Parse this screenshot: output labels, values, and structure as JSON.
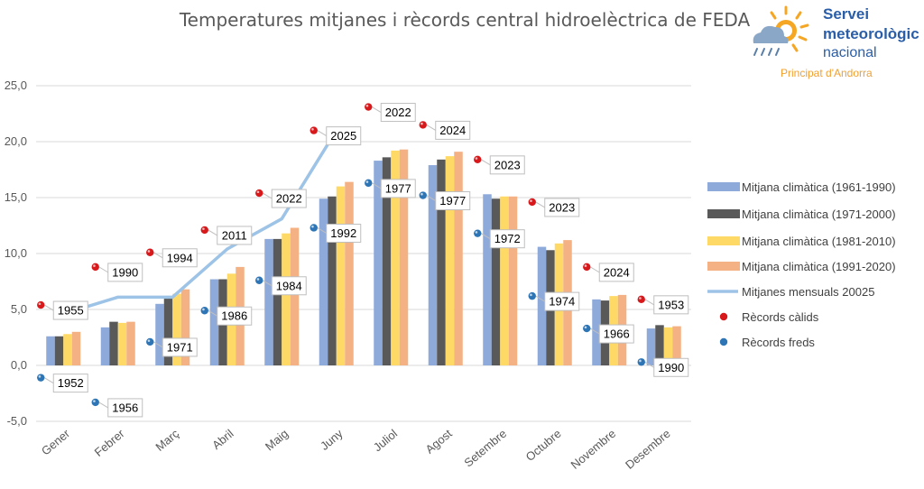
{
  "colors": {
    "s1": "#8eaadb",
    "s2": "#595959",
    "s3": "#ffd966",
    "s4": "#f4b183",
    "line": "#9dc3e6",
    "warm": "#d7191c",
    "cold": "#2e75b6",
    "grid": "#d9d9d9"
  },
  "logo": {
    "line1": "Servei",
    "line2": "meteorològic",
    "line3": "nacional",
    "line4": "Principat d'Andorra",
    "icon": "sun-cloud-rain-icon"
  },
  "chart_data": {
    "type": "bar",
    "title": "Temperatures mitjanes i rècords central hidroelèctrica de FEDA",
    "categories": [
      "Gener",
      "Febrer",
      "Març",
      "Abril",
      "Maig",
      "Juny",
      "Juliol",
      "Agost",
      "Setembre",
      "Octubre",
      "Novembre",
      "Desembre"
    ],
    "ylim": [
      -5,
      25
    ],
    "yticks": [
      "-5,0",
      "0,0",
      "5,0",
      "10,0",
      "15,0",
      "20,0",
      "25,0"
    ],
    "grid": true,
    "legend_position": "right",
    "series": [
      {
        "name": "Mitjana climàtica (1961-1990)",
        "values": [
          2.6,
          3.4,
          5.5,
          7.7,
          11.3,
          14.9,
          18.3,
          17.9,
          15.3,
          10.6,
          5.9,
          3.3
        ]
      },
      {
        "name": "Mitjana climàtica (1971-2000)",
        "values": [
          2.6,
          3.9,
          6.0,
          7.7,
          11.3,
          15.1,
          18.6,
          18.4,
          14.9,
          10.3,
          5.8,
          3.6
        ]
      },
      {
        "name": "Mitjana climàtica (1981-2010)",
        "values": [
          2.8,
          3.8,
          6.4,
          8.2,
          11.8,
          16.0,
          19.2,
          18.7,
          15.1,
          10.9,
          6.2,
          3.4
        ]
      },
      {
        "name": "Mitjana climàtica (1991-2020)",
        "values": [
          3.0,
          3.9,
          6.8,
          8.8,
          12.3,
          16.4,
          19.3,
          19.1,
          15.1,
          11.2,
          6.3,
          3.5
        ]
      }
    ],
    "line": {
      "name": "Mitjanes mensuals 20025",
      "values": [
        4.6,
        6.1,
        6.1,
        10.4,
        13.1,
        21.0
      ]
    },
    "warm_records": {
      "name": "Rècords càlids",
      "values": [
        5.4,
        8.8,
        10.1,
        12.1,
        15.4,
        21.0,
        23.1,
        21.5,
        18.4,
        14.6,
        8.8,
        5.9
      ],
      "years": [
        "1955",
        "1990",
        "1994",
        "2011",
        "2022",
        "2025",
        "2022",
        "2024",
        "2023",
        "2023",
        "2024",
        "1953"
      ]
    },
    "cold_records": {
      "name": "Rècords freds",
      "values": [
        -1.1,
        -3.3,
        2.1,
        4.9,
        7.6,
        12.3,
        16.3,
        15.2,
        11.8,
        6.2,
        3.3,
        0.3
      ],
      "years": [
        "1952",
        "1956",
        "1971",
        "1986",
        "1984",
        "1992",
        "1977",
        "1977",
        "1972",
        "1974",
        "1966",
        "1990"
      ]
    }
  }
}
